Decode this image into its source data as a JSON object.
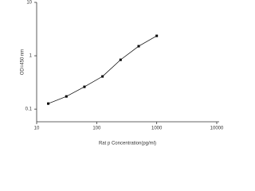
{
  "chart_data": {
    "type": "line",
    "x_label": "Rat  p  Concentration(pg/ml)",
    "y_label": "OD=450 nm",
    "x": [
      15.6,
      31.25,
      62.5,
      125,
      250,
      500,
      1000
    ],
    "series": [
      {
        "color": "#000000",
        "values": [
          0.127,
          0.173,
          0.262,
          0.41,
          0.84,
          1.51,
          2.36
        ]
      }
    ],
    "xlim": [
      10,
      10000
    ],
    "xticks": [
      10,
      100,
      1000,
      10000
    ],
    "ylim": [
      0.058,
      10
    ],
    "yticks": [
      0.1,
      1,
      10
    ],
    "xscale": "log",
    "yscale": "log",
    "grid": false,
    "markers": true
  }
}
